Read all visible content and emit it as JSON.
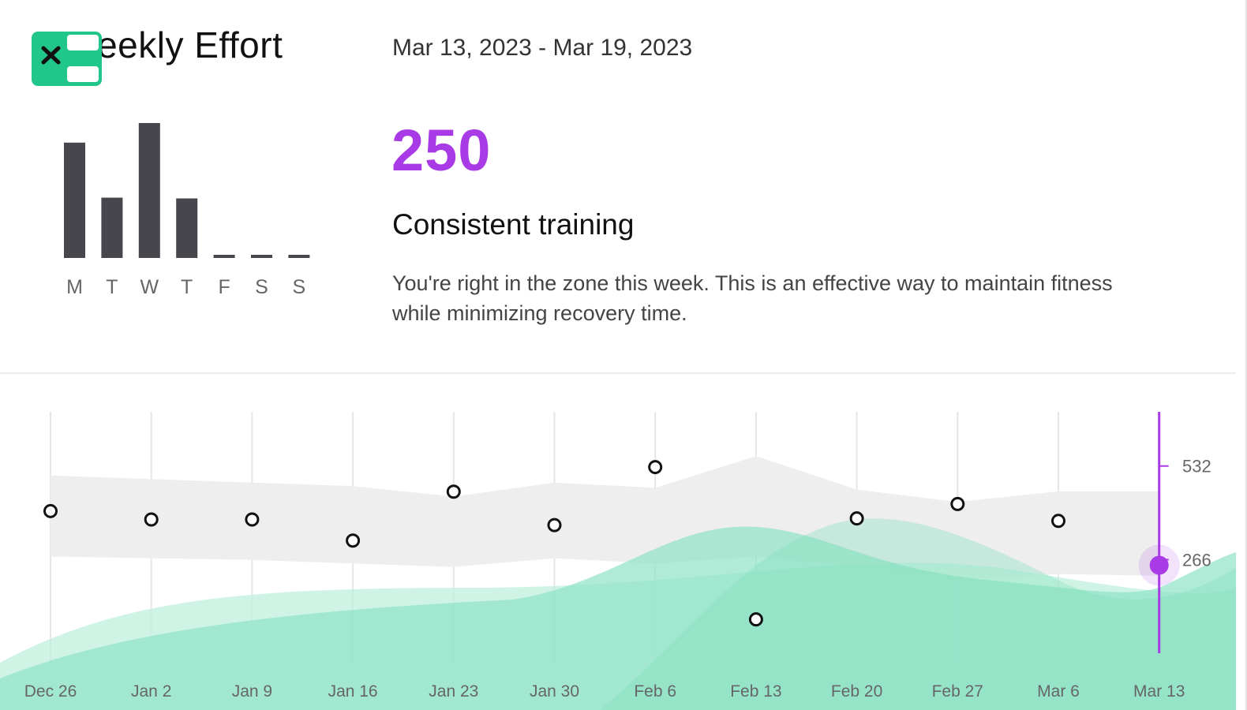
{
  "header": {
    "title": "Weekly Effort",
    "date_range": "Mar 13, 2023 - Mar 19, 2023"
  },
  "summary": {
    "score": "250",
    "headline": "Consistent training",
    "description": "You're right in the zone this week. This is an effective way to maintain fitness while minimizing recovery time."
  },
  "app_icon": "close-x-icon",
  "colors": {
    "accent": "#a93be6",
    "bar": "#47464c",
    "icon_green": "#21c68a",
    "fitness_green": "#8fe3c6",
    "range_band": "#eeeeee"
  },
  "daily_chart": {
    "type": "bar",
    "categories": [
      "M",
      "T",
      "W",
      "T",
      "F",
      "S",
      "S"
    ],
    "values": [
      153,
      80,
      179,
      79,
      0,
      0,
      0
    ],
    "ylim": [
      0,
      180
    ]
  },
  "chart_data": {
    "type": "scatter",
    "categories": [
      "Dec 26",
      "Jan 2",
      "Jan 9",
      "Jan 16",
      "Jan 23",
      "Jan 30",
      "Feb 6",
      "Feb 13",
      "Feb 20",
      "Feb 27",
      "Mar 6",
      "Mar 13"
    ],
    "series": [
      {
        "values": [
          404,
          380,
          380,
          320,
          459,
          364,
          529,
          96,
          383,
          424,
          376,
          250
        ]
      }
    ],
    "range_band": {
      "upper": [
        505,
        495,
        485,
        475,
        445,
        485,
        470,
        560,
        465,
        430,
        460,
        460
      ],
      "lower": [
        275,
        270,
        265,
        255,
        245,
        270,
        255,
        275,
        245,
        210,
        225,
        220
      ]
    },
    "y_ticks": [
      532,
      266
    ],
    "ylim": [
      0,
      700
    ]
  }
}
